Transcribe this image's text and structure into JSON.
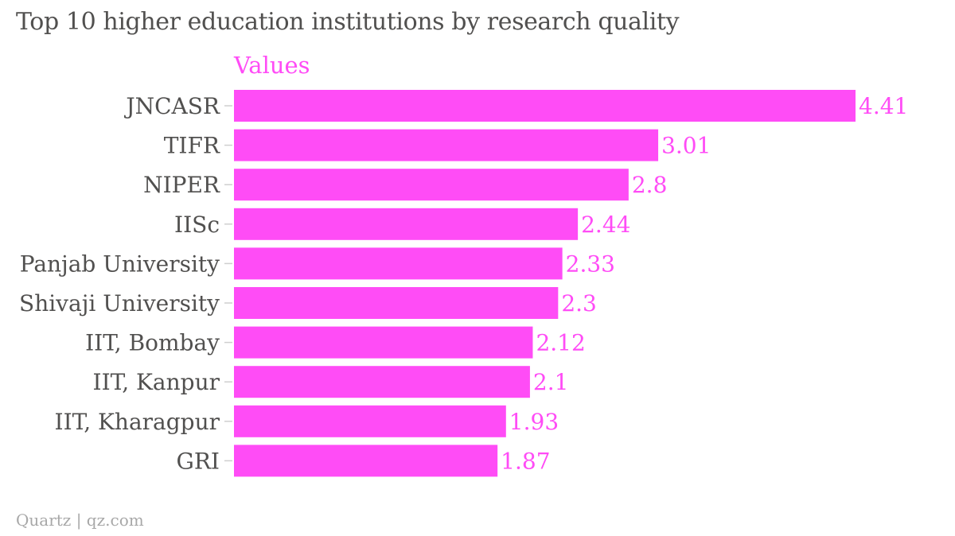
{
  "chart_data": {
    "type": "bar",
    "orientation": "horizontal",
    "title": "Top 10 higher education institutions by research quality",
    "categories": [
      "JNCASR",
      "TIFR",
      "NIPER",
      "IISc",
      "Panjab University",
      "Shivaji University",
      "IIT, Bombay",
      "IIT, Kanpur",
      "IIT, Kharagpur",
      "GRI"
    ],
    "series": [
      {
        "name": "Values",
        "values": [
          4.41,
          3.01,
          2.8,
          2.44,
          2.33,
          2.3,
          2.12,
          2.1,
          1.93,
          1.87
        ],
        "labels": [
          "4.41",
          "3.01",
          "2.8",
          "2.44",
          "2.33",
          "2.3",
          "2.12",
          "2.1",
          "1.93",
          "1.87"
        ],
        "color": "#ff4cf6"
      }
    ],
    "xlim": [
      0,
      4.41
    ],
    "xlabel": "",
    "ylabel": "",
    "grid": false,
    "legend_position": "top-left"
  },
  "footer": {
    "source": "Quartz | qz.com"
  },
  "colors": {
    "bar": "#ff4cf6",
    "text": "#51504f",
    "tick": "#cfcfcf",
    "footer": "#a8a8a8"
  }
}
